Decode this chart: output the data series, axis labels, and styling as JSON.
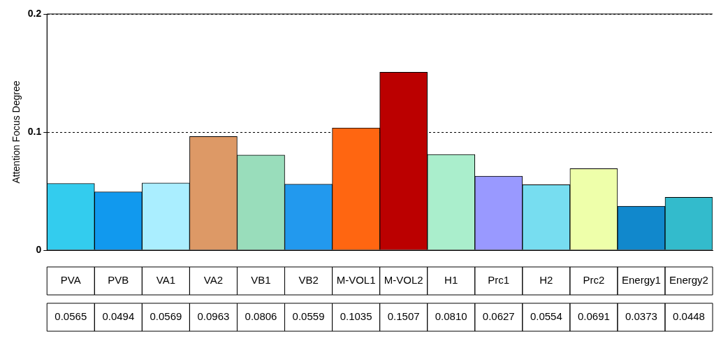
{
  "chart_data": {
    "type": "bar",
    "ylabel": "Attention Focus Degree",
    "categories": [
      "PVA",
      "PVB",
      "VA1",
      "VA2",
      "VB1",
      "VB2",
      "M-VOL1",
      "M-VOL2",
      "H1",
      "Prc1",
      "H2",
      "Prc2",
      "Energy1",
      "Energy2"
    ],
    "values": [
      0.0565,
      0.0494,
      0.0569,
      0.0963,
      0.0806,
      0.0559,
      0.1035,
      0.1507,
      0.081,
      0.0627,
      0.0554,
      0.0691,
      0.0373,
      0.0448
    ],
    "value_labels": [
      "0.0565",
      "0.0494",
      "0.0569",
      "0.0963",
      "0.0806",
      "0.0559",
      "0.1035",
      "0.1507",
      "0.0810",
      "0.0627",
      "0.0554",
      "0.0691",
      "0.0373",
      "0.0448"
    ],
    "colors": [
      "#33ccee",
      "#1199ee",
      "#aaeeff",
      "#dd9966",
      "#99ddbb",
      "#2299ee",
      "#ff6611",
      "#bb0000",
      "#aaeecc",
      "#9999ff",
      "#77ddf0",
      "#eeffaa",
      "#1188cc",
      "#33bbcc"
    ],
    "ylim": [
      0,
      0.2
    ],
    "yticks": [
      0,
      0.1,
      0.2
    ],
    "grid": "y",
    "legend": false
  }
}
